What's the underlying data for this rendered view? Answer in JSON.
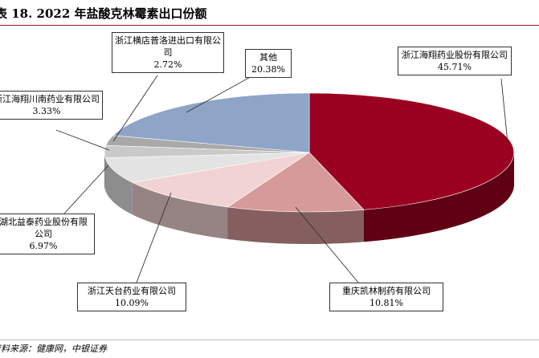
{
  "title": "表 18. 2022 年盐酸克林霉素出口份额",
  "source": "资料来源：健康网，中银证券",
  "chart_data": {
    "type": "pie",
    "title": "",
    "slices": [
      {
        "label": "浙江海翔药业股份有限公司",
        "value": 45.71,
        "value_label": "45.71%",
        "color": "#9a0020"
      },
      {
        "label": "重庆凯林制药有限公司",
        "value": 10.81,
        "value_label": "10.81%",
        "color": "#d79a9a"
      },
      {
        "label": "浙江天台药业有限公司",
        "value": 10.09,
        "value_label": "10.09%",
        "color": "#f2d3d3"
      },
      {
        "label": "湖北益泰药业股份有限公司",
        "value": 6.97,
        "value_label": "6.97%",
        "color": "#e3e3e3"
      },
      {
        "label": "浙江海翔川南药业有限公司",
        "value": 3.33,
        "value_label": "3.33%",
        "color": "#c9c9c9"
      },
      {
        "label": "浙江横店普洛进出口有限公司",
        "value": 2.72,
        "value_label": "2.72%",
        "color": "#a9a9a9"
      },
      {
        "label": "其他",
        "value": 20.38,
        "value_label": "20.38%",
        "color": "#8ea5c8"
      }
    ]
  }
}
